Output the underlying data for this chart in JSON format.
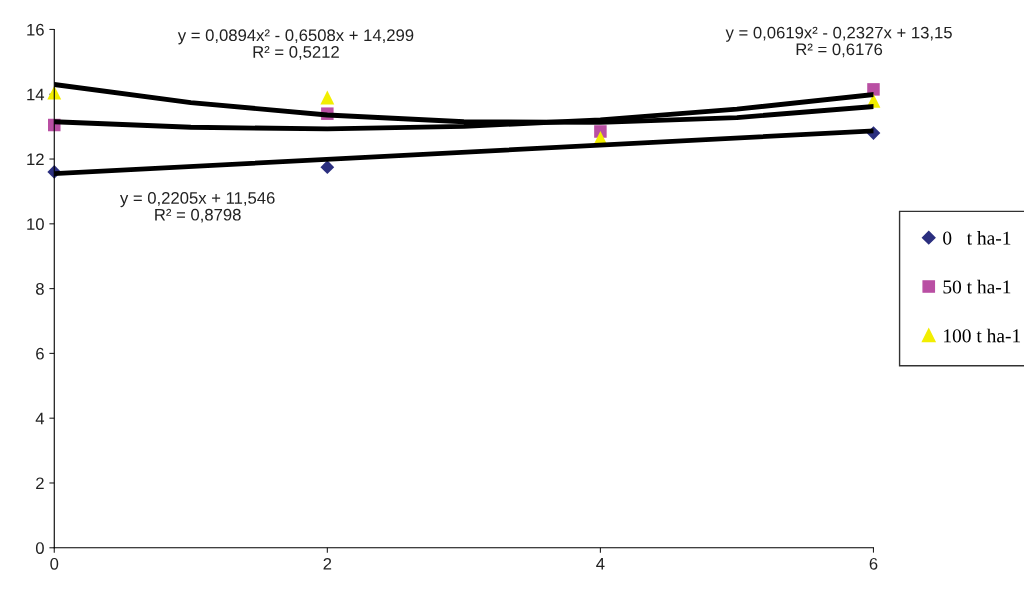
{
  "chart_data": {
    "type": "scatter",
    "xlim": [
      0,
      6
    ],
    "xticks": [
      0,
      2,
      4,
      6
    ],
    "ylim": [
      0,
      16
    ],
    "yticks": [
      0,
      2,
      4,
      6,
      8,
      10,
      12,
      14,
      16
    ],
    "grid": false,
    "legend": "right",
    "series": [
      {
        "name": "0   t ha-1",
        "color": "#2b2f7f",
        "marker": "diamond",
        "x": [
          0,
          2,
          4,
          6
        ],
        "values": [
          11.6,
          11.75,
          null,
          12.8
        ]
      },
      {
        "name": "50 t ha-1",
        "color": "#b94fa3",
        "marker": "square",
        "x": [
          0,
          2,
          4,
          6
        ],
        "values": [
          13.05,
          13.4,
          12.85,
          14.15
        ]
      },
      {
        "name": "100 t ha-1",
        "color": "#f2ee00",
        "marker": "triangle",
        "x": [
          0,
          2,
          4,
          6
        ],
        "values": [
          14.05,
          13.9,
          12.65,
          13.8
        ]
      },
      {
        "type": "line",
        "color": "#000000",
        "marker": "none",
        "x": [
          0,
          6
        ],
        "values": [
          11.55,
          12.87
        ]
      },
      {
        "type": "line",
        "color": "#000000",
        "marker": "none",
        "x": [
          0,
          1,
          2,
          3,
          4,
          5,
          6
        ],
        "values": [
          13.15,
          12.98,
          12.93,
          13.01,
          13.21,
          13.54,
          13.99
        ]
      },
      {
        "type": "line",
        "color": "#000000",
        "marker": "none",
        "x": [
          0,
          1,
          2,
          3,
          4,
          5,
          6
        ],
        "values": [
          14.3,
          13.74,
          13.36,
          13.15,
          13.13,
          13.28,
          13.62
        ]
      }
    ],
    "annotations": [
      "y = 0,0894x² - 0,6508x + 14,299\nR² = 0,5212",
      "y = 0,0619x² - 0,2327x + 13,15\nR² = 0,6176",
      "y = 0,2205x + 11,546\nR² = 0,8798"
    ]
  }
}
